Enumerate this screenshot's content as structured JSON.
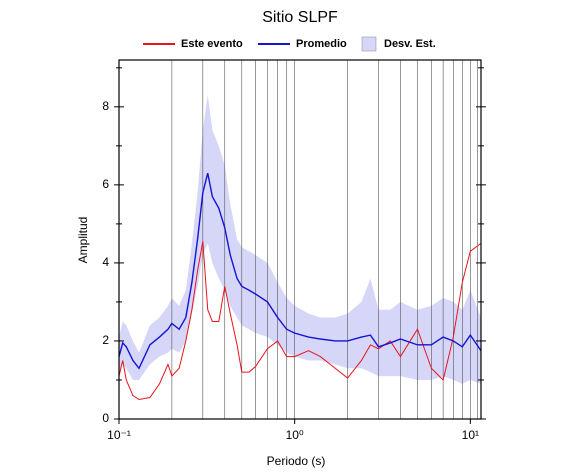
{
  "chart_data": {
    "type": "line",
    "title": "Sitio SLPF",
    "x_label": "Periodo (s)",
    "y_label": "Amplitud",
    "log_x": true,
    "xlim": [
      0.1,
      11.5
    ],
    "ylim": [
      0,
      9.2
    ],
    "xticks": [
      {
        "value": 0.1,
        "label": "10⁻¹"
      },
      {
        "value": 1,
        "label": "10⁰"
      },
      {
        "value": 10,
        "label": "10¹"
      }
    ],
    "x_grid": [
      0.2,
      0.3,
      0.4,
      0.5,
      0.6,
      0.7,
      0.8,
      0.9,
      1,
      2,
      3,
      4,
      5,
      6,
      7,
      8,
      9,
      10,
      11
    ],
    "yticks": [
      0,
      2,
      4,
      6,
      8
    ],
    "y_minor_ticks": [
      1,
      3,
      5,
      7,
      9
    ],
    "x": [
      0.1,
      0.105,
      0.11,
      0.12,
      0.13,
      0.15,
      0.17,
      0.19,
      0.2,
      0.22,
      0.24,
      0.26,
      0.28,
      0.3,
      0.32,
      0.34,
      0.37,
      0.4,
      0.43,
      0.47,
      0.5,
      0.55,
      0.6,
      0.7,
      0.8,
      0.9,
      1.0,
      1.2,
      1.4,
      1.7,
      2.0,
      2.4,
      2.7,
      3.0,
      3.5,
      4,
      5,
      6,
      7,
      8,
      9,
      10,
      11.5
    ],
    "series": [
      {
        "name": "Este evento",
        "color": "#e8141e",
        "values": [
          1.1,
          1.5,
          1.0,
          0.6,
          0.5,
          0.55,
          0.9,
          1.4,
          1.1,
          1.3,
          2.0,
          2.8,
          3.8,
          4.55,
          2.8,
          2.5,
          2.5,
          3.4,
          2.7,
          1.9,
          1.2,
          1.2,
          1.35,
          1.8,
          2.0,
          1.6,
          1.6,
          1.75,
          1.6,
          1.3,
          1.05,
          1.5,
          1.9,
          1.8,
          2.0,
          1.6,
          2.3,
          1.3,
          1.0,
          2.1,
          3.5,
          4.3,
          4.5
        ]
      },
      {
        "name": "Promedio",
        "color": "#1414d2",
        "values": [
          1.6,
          1.95,
          1.85,
          1.5,
          1.3,
          1.9,
          2.1,
          2.3,
          2.45,
          2.3,
          2.6,
          3.5,
          4.6,
          5.8,
          6.3,
          5.7,
          5.4,
          4.9,
          4.2,
          3.6,
          3.4,
          3.3,
          3.2,
          3.0,
          2.6,
          2.3,
          2.2,
          2.1,
          2.05,
          2.0,
          2.0,
          2.1,
          2.15,
          1.85,
          1.95,
          2.05,
          1.9,
          1.9,
          2.1,
          2.0,
          1.85,
          2.15,
          1.75
        ]
      },
      {
        "name": "Desv. Est.",
        "color": "#d6d6f8",
        "lower": [
          1.2,
          1.4,
          1.3,
          1.0,
          1.0,
          1.4,
          1.6,
          1.7,
          1.8,
          1.7,
          2.0,
          2.7,
          3.4,
          4.2,
          4.5,
          4.0,
          3.6,
          3.3,
          2.9,
          2.6,
          2.4,
          2.3,
          2.2,
          2.1,
          1.9,
          1.7,
          1.6,
          1.5,
          1.5,
          1.4,
          1.3,
          1.3,
          1.2,
          1.1,
          1.1,
          1.1,
          1.0,
          1.0,
          1.1,
          1.0,
          0.9,
          1.0,
          0.9
        ],
        "upper": [
          2.1,
          2.5,
          2.4,
          2.0,
          1.7,
          2.4,
          2.6,
          2.9,
          3.1,
          2.9,
          3.3,
          4.5,
          5.8,
          7.4,
          8.3,
          7.4,
          7.0,
          6.5,
          5.5,
          4.6,
          4.4,
          4.3,
          4.2,
          4.0,
          3.5,
          3.1,
          2.9,
          2.7,
          2.6,
          2.6,
          2.7,
          3.0,
          3.6,
          2.8,
          2.8,
          3.0,
          2.8,
          2.9,
          3.1,
          3.0,
          2.8,
          3.3,
          2.6
        ]
      }
    ]
  }
}
